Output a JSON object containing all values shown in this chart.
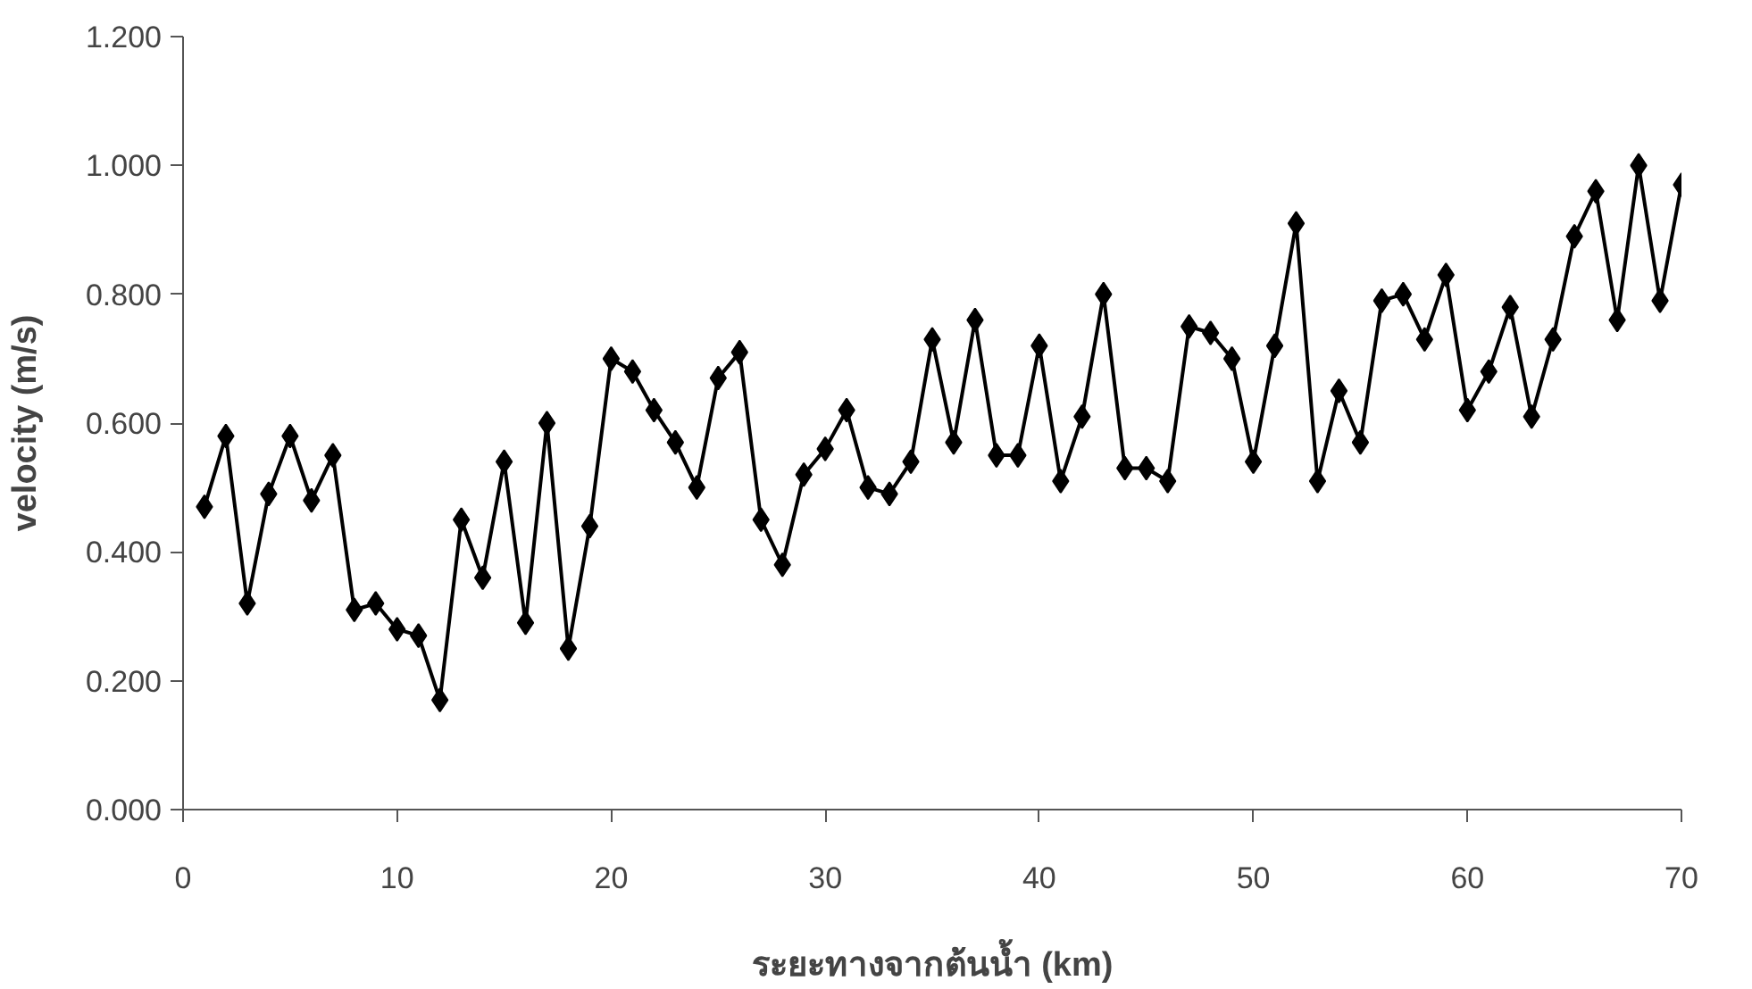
{
  "chart_data": {
    "type": "line",
    "xlabel": "ระยะทางจากต้นน้ำ (km)",
    "ylabel": "velocity (m/s)",
    "x": [
      1,
      2,
      3,
      4,
      5,
      6,
      7,
      8,
      9,
      10,
      11,
      12,
      13,
      14,
      15,
      16,
      17,
      18,
      19,
      20,
      21,
      22,
      23,
      24,
      25,
      26,
      27,
      28,
      29,
      30,
      31,
      32,
      33,
      34,
      35,
      36,
      37,
      38,
      39,
      40,
      41,
      42,
      43,
      44,
      45,
      46,
      47,
      48,
      49,
      50,
      51,
      52,
      53,
      54,
      55,
      56,
      57,
      58,
      59,
      60,
      61,
      62,
      63,
      64,
      65,
      66,
      67,
      68,
      69,
      70
    ],
    "series": [
      {
        "color": "#000000",
        "values": [
          0.47,
          0.58,
          0.32,
          0.49,
          0.58,
          0.48,
          0.55,
          0.31,
          0.32,
          0.28,
          0.27,
          0.17,
          0.45,
          0.36,
          0.54,
          0.29,
          0.6,
          0.25,
          0.44,
          0.7,
          0.68,
          0.62,
          0.57,
          0.5,
          0.67,
          0.71,
          0.45,
          0.38,
          0.52,
          0.56,
          0.62,
          0.5,
          0.49,
          0.54,
          0.73,
          0.57,
          0.76,
          0.55,
          0.55,
          0.72,
          0.51,
          0.61,
          0.8,
          0.53,
          0.53,
          0.51,
          0.75,
          0.74,
          0.7,
          0.54,
          0.72,
          0.91,
          0.51,
          0.65,
          0.57,
          0.79,
          0.8,
          0.73,
          0.83,
          0.62,
          0.68,
          0.78,
          0.61,
          0.73,
          0.89,
          0.96,
          0.76,
          1.0,
          0.79,
          0.97
        ]
      }
    ],
    "xlim": [
      0,
      70
    ],
    "xticks": [
      0,
      10,
      20,
      30,
      40,
      50,
      60,
      70
    ],
    "ylim": [
      0,
      1.2
    ],
    "yticks": [
      {
        "value": 0,
        "label": "0.000"
      },
      {
        "value": 0.2,
        "label": "0.200"
      },
      {
        "value": 0.4,
        "label": "0.400"
      },
      {
        "value": 0.6,
        "label": "0.600"
      },
      {
        "value": 0.8,
        "label": "0.800"
      },
      {
        "value": 1.0,
        "label": "1.000"
      },
      {
        "value": 1.2,
        "label": "1.200"
      }
    ],
    "marker": "diamond",
    "line_style": "solid"
  }
}
